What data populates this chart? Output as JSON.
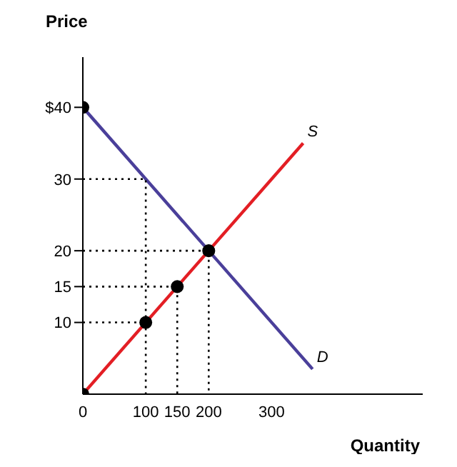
{
  "chart_data": {
    "type": "line",
    "xlabel": "Quantity",
    "ylabel": "Price",
    "xlim": [
      0,
      540
    ],
    "ylim": [
      0,
      47
    ],
    "xticks": [
      0,
      100,
      150,
      200,
      300
    ],
    "yticks": [
      10,
      15,
      20,
      30,
      {
        "value": 40,
        "label": "$40"
      }
    ],
    "grid": false,
    "legend": false,
    "series": [
      {
        "name": "S",
        "color": "#e31e24",
        "x": [
          0,
          350
        ],
        "values": [
          0,
          35
        ],
        "marker": "none",
        "line_style": "solid"
      },
      {
        "name": "D",
        "color": "#4a3f9a",
        "x": [
          0,
          365
        ],
        "values": [
          40,
          3.5
        ],
        "marker": "none",
        "line_style": "solid"
      },
      {
        "color": "#000000",
        "x": [
          0,
          100,
          100
        ],
        "values": [
          30,
          30,
          0
        ],
        "marker": "none",
        "line_style": "dotted"
      },
      {
        "color": "#000000",
        "x": [
          0,
          200,
          200
        ],
        "values": [
          20,
          20,
          0
        ],
        "marker": "none",
        "line_style": "dotted"
      },
      {
        "color": "#000000",
        "x": [
          0,
          150,
          150
        ],
        "values": [
          15,
          15,
          0
        ],
        "marker": "none",
        "line_style": "dotted"
      },
      {
        "color": "#000000",
        "x": [
          0,
          100
        ],
        "values": [
          10,
          10
        ],
        "marker": "none",
        "line_style": "dotted"
      },
      {
        "type": "scatter",
        "color": "#000000",
        "x": [
          0,
          0,
          100,
          150,
          200
        ],
        "values": [
          40,
          0,
          10,
          15,
          20
        ],
        "marker": "circle"
      }
    ]
  }
}
